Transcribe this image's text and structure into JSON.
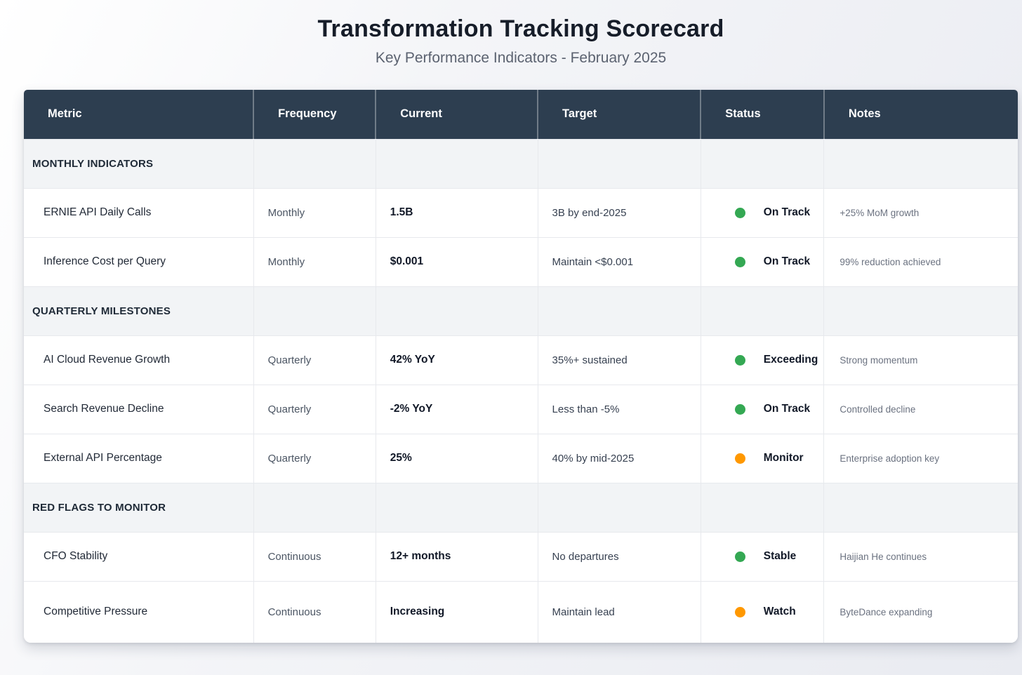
{
  "page": {
    "title": "Transformation Tracking Scorecard",
    "subtitle": "Key Performance Indicators - February 2025"
  },
  "table": {
    "columns": [
      "Metric",
      "Frequency",
      "Current",
      "Target",
      "Status",
      "Notes"
    ],
    "status_colors": {
      "green": "#34a853",
      "orange": "#ff9800"
    },
    "rows": [
      {
        "type": "section",
        "label": "MONTHLY INDICATORS"
      },
      {
        "type": "data",
        "metric": "ERNIE API Daily Calls",
        "frequency": "Monthly",
        "current": "1.5B",
        "target": "3B by end-2025",
        "status_color": "green",
        "status_label": "On Track",
        "notes": "+25% MoM growth"
      },
      {
        "type": "data",
        "metric": "Inference Cost per Query",
        "frequency": "Monthly",
        "current": "$0.001",
        "target": "Maintain <$0.001",
        "status_color": "green",
        "status_label": "On Track",
        "notes": "99% reduction achieved"
      },
      {
        "type": "section",
        "label": "QUARTERLY MILESTONES"
      },
      {
        "type": "data",
        "metric": "AI Cloud Revenue Growth",
        "frequency": "Quarterly",
        "current": "42% YoY",
        "target": "35%+ sustained",
        "status_color": "green",
        "status_label": "Exceeding",
        "notes": "Strong momentum"
      },
      {
        "type": "data",
        "metric": "Search Revenue Decline",
        "frequency": "Quarterly",
        "current": "-2% YoY",
        "target": "Less than -5%",
        "status_color": "green",
        "status_label": "On Track",
        "notes": "Controlled decline"
      },
      {
        "type": "data",
        "metric": "External API Percentage",
        "frequency": "Quarterly",
        "current": "25%",
        "target": "40% by mid-2025",
        "status_color": "orange",
        "status_label": "Monitor",
        "notes": "Enterprise adoption key"
      },
      {
        "type": "section",
        "label": "RED FLAGS TO MONITOR"
      },
      {
        "type": "data",
        "metric": "CFO Stability",
        "frequency": "Continuous",
        "current": "12+ months",
        "target": "No departures",
        "status_color": "green",
        "status_label": "Stable",
        "notes": "Haijian He continues"
      },
      {
        "type": "data",
        "metric": "Competitive Pressure",
        "frequency": "Continuous",
        "current": "Increasing",
        "target": "Maintain lead",
        "status_color": "orange",
        "status_label": "Watch",
        "notes": "ByteDance expanding"
      }
    ]
  }
}
